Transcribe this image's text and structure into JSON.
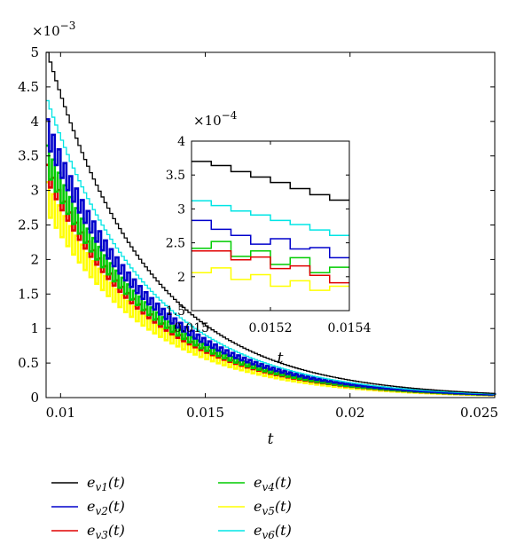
{
  "chart_data": [
    {
      "type": "line",
      "role": "main",
      "xlabel": "t",
      "ylabel": "",
      "y_multiplier": {
        "base": "×10",
        "exponent": "−3"
      },
      "xlim": [
        0.0095,
        0.025
      ],
      "ylim": [
        0,
        5
      ],
      "x_ticks": [
        {
          "value": 0.01,
          "label": "0.01"
        },
        {
          "value": 0.015,
          "label": "0.015"
        },
        {
          "value": 0.02,
          "label": "0.02"
        },
        {
          "value": 0.025,
          "label": "0.025"
        }
      ],
      "y_ticks": [
        {
          "value": 0,
          "label": "0"
        },
        {
          "value": 0.5,
          "label": "0.5"
        },
        {
          "value": 1,
          "label": "1"
        },
        {
          "value": 1.5,
          "label": "1.5"
        },
        {
          "value": 2,
          "label": "2"
        },
        {
          "value": 2.5,
          "label": "2.5"
        },
        {
          "value": 3,
          "label": "3"
        },
        {
          "value": 3.5,
          "label": "3.5"
        },
        {
          "value": 4,
          "label": "4"
        },
        {
          "value": 4.5,
          "label": "4.5"
        },
        {
          "value": 5,
          "label": "5"
        }
      ],
      "step_width": 0.0001,
      "decay_time_constant": 0.0035,
      "series": [
        {
          "name": "e_v1(t)",
          "color": "#000000",
          "x0": 0.0095,
          "y0": 5.0,
          "zigzag": 0.0
        },
        {
          "name": "e_v2(t)",
          "color": "#0000cc",
          "x0": 0.0095,
          "y0": 3.85,
          "zigzag": 0.18
        },
        {
          "name": "e_v3(t)",
          "color": "#e00000",
          "x0": 0.0095,
          "y0": 3.25,
          "zigzag": 0.12
        },
        {
          "name": "e_v4(t)",
          "color": "#00cc00",
          "x0": 0.0095,
          "y0": 3.45,
          "zigzag": 0.2
        },
        {
          "name": "e_v5(t)",
          "color": "#ffff00",
          "x0": 0.0095,
          "y0": 2.9,
          "zigzag": 0.22
        },
        {
          "name": "e_v6(t)",
          "color": "#00e5e5",
          "x0": 0.0095,
          "y0": 4.3,
          "zigzag": 0.0
        }
      ]
    },
    {
      "type": "line",
      "role": "inset",
      "xlabel": "t",
      "y_multiplier": {
        "base": "×10",
        "exponent": "−4"
      },
      "xlim": [
        0.015,
        0.0154
      ],
      "ylim": [
        1.5,
        4
      ],
      "x_ticks": [
        {
          "value": 0.015,
          "label": "0.015"
        },
        {
          "value": 0.0152,
          "label": "0.0152"
        },
        {
          "value": 0.0154,
          "label": "0.0154"
        }
      ],
      "y_ticks": [
        {
          "value": 1.5,
          "label": "1.5"
        },
        {
          "value": 2,
          "label": "2"
        },
        {
          "value": 2.5,
          "label": "2.5"
        },
        {
          "value": 3,
          "label": "3"
        },
        {
          "value": 3.5,
          "label": "3.5"
        },
        {
          "value": 4,
          "label": "4"
        }
      ],
      "series": [
        {
          "name": "e_v1(t)",
          "color": "#000000",
          "steps": [
            3.7,
            3.64,
            3.55,
            3.47,
            3.39,
            3.3,
            3.21,
            3.13
          ]
        },
        {
          "name": "e_v6(t)",
          "color": "#00e5e5",
          "steps": [
            3.12,
            3.05,
            2.97,
            2.91,
            2.83,
            2.77,
            2.69,
            2.61
          ]
        },
        {
          "name": "e_v2(t)",
          "color": "#0000cc",
          "steps": [
            2.83,
            2.7,
            2.61,
            2.48,
            2.56,
            2.41,
            2.43,
            2.28
          ]
        },
        {
          "name": "e_v4(t)",
          "color": "#00cc00",
          "steps": [
            2.42,
            2.52,
            2.3,
            2.38,
            2.18,
            2.28,
            2.06,
            2.14
          ]
        },
        {
          "name": "e_v3(t)",
          "color": "#e00000",
          "steps": [
            2.38,
            2.38,
            2.25,
            2.29,
            2.12,
            2.16,
            2.02,
            1.91
          ]
        },
        {
          "name": "e_v5(t)",
          "color": "#ffff00",
          "steps": [
            2.06,
            2.13,
            1.96,
            2.03,
            1.86,
            1.94,
            1.8,
            1.86
          ]
        }
      ]
    }
  ],
  "legend": {
    "placement": "bottom",
    "items": [
      {
        "base": "e",
        "sub": "v1",
        "suffix": "(t)",
        "color": "#000000"
      },
      {
        "base": "e",
        "sub": "v4",
        "suffix": "(t)",
        "color": "#00cc00"
      },
      {
        "base": "e",
        "sub": "v2",
        "suffix": "(t)",
        "color": "#0000cc"
      },
      {
        "base": "e",
        "sub": "v5",
        "suffix": "(t)",
        "color": "#ffff00"
      },
      {
        "base": "e",
        "sub": "v3",
        "suffix": "(t)",
        "color": "#e00000"
      },
      {
        "base": "e",
        "sub": "v6",
        "suffix": "(t)",
        "color": "#00e5e5"
      }
    ]
  }
}
